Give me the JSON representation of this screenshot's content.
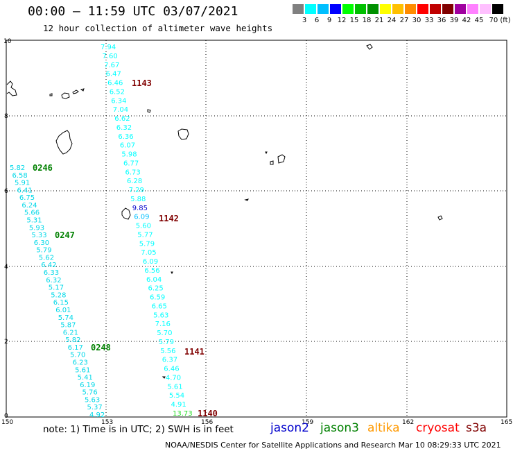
{
  "title": "00:00 – 11:59 UTC 03/07/2021",
  "subtitle": "12 hour collection of altimeter wave heights",
  "color_scale": {
    "labels": [
      "3",
      "6",
      "9",
      "12",
      "15",
      "18",
      "21",
      "24",
      "27",
      "30",
      "33",
      "36",
      "39",
      "42",
      "45",
      "70 (ft)"
    ],
    "colors": [
      "#808080",
      "#00ffff",
      "#00bfff",
      "#0000ff",
      "#00ff00",
      "#00c000",
      "#009000",
      "#ffff00",
      "#ffc000",
      "#ff8c00",
      "#ff0000",
      "#c00000",
      "#800000",
      "#a000a0",
      "#ff80ff",
      "#ffc0ff",
      "#000000"
    ]
  },
  "map": {
    "x_axis_labels": [
      "150",
      "153",
      "156",
      "159",
      "162",
      "165"
    ],
    "y_axis_labels": [
      "10",
      "8",
      "6",
      "4",
      "2",
      "0"
    ],
    "pass_labels": [
      {
        "text": "1143",
        "satellite": "cryosat",
        "color": "#800000"
      },
      {
        "text": "0246",
        "satellite": "jason3",
        "color": "#008000"
      },
      {
        "text": "0247",
        "satellite": "jason3",
        "color": "#008000"
      },
      {
        "text": "1142",
        "satellite": "cryosat",
        "color": "#800000"
      },
      {
        "text": "0248",
        "satellite": "jason3",
        "color": "#008000"
      },
      {
        "text": "1141",
        "satellite": "cryosat",
        "color": "#800000"
      },
      {
        "text": "1140",
        "satellite": "cryosat",
        "color": "#800000"
      }
    ],
    "tracks": [
      {
        "name": "cryosat-1143-1140",
        "values": [
          "7.94",
          "7.60",
          "7.67",
          "6.47",
          "6.46",
          "6.52",
          "6.34",
          "7.04",
          "6.62",
          "6.32",
          "6.36",
          "6.07",
          "5.98",
          "6.77",
          "6.73",
          "6.28",
          "7.29",
          "5.88",
          "9.85",
          "6.09",
          "5.60",
          "5.77",
          "5.79",
          "7.05",
          "6.09",
          "6.56",
          "6.04",
          "6.25",
          "6.59",
          "6.65",
          "5.63",
          "7.16",
          "5.70",
          "5.79",
          "5.56",
          "6.37",
          "6.46",
          "4.70",
          "5.61",
          "5.54",
          "4.91",
          "13.73"
        ],
        "colors": [
          "#00ffff",
          "#00ffff",
          "#00ffff",
          "#00ffff",
          "#00ffff",
          "#00ffff",
          "#00ffff",
          "#00ffff",
          "#00ffff",
          "#00ffff",
          "#00ffff",
          "#00ffff",
          "#00ffff",
          "#00ffff",
          "#00ffff",
          "#00ffff",
          "#00ffff",
          "#00ffff",
          "#0000cc",
          "#00bfff",
          "#00ffff",
          "#00ffff",
          "#00ffff",
          "#00ffff",
          "#00ffff",
          "#00ffff",
          "#00ffff",
          "#00ffff",
          "#00ffff",
          "#00ffff",
          "#00ffff",
          "#00ffff",
          "#00ffff",
          "#00ffff",
          "#00ffff",
          "#00ffff",
          "#00ffff",
          "#00ffff",
          "#00ffff",
          "#00ffff",
          "#00ffff",
          "#22dd22"
        ]
      },
      {
        "name": "jason3-0246-0248",
        "values": [
          "5.82",
          "6.58",
          "5.91",
          "6.41",
          "6.75",
          "6.24",
          "5.66",
          "5.31",
          "5.93",
          "5.33",
          "6.30",
          "5.79",
          "5.62",
          "6.42",
          "6.33",
          "6.32",
          "5.17",
          "5.28",
          "6.15",
          "6.01",
          "5.74",
          "5.87",
          "6.21",
          "5.82",
          "6.17",
          "5.70",
          "6.23",
          "5.61",
          "5.41",
          "6.19",
          "5.76",
          "5.63",
          "5.37",
          "4.92"
        ],
        "colors": []
      }
    ]
  },
  "note": "note:  1) Time is in UTC;  2) SWH is in feet",
  "legend": [
    {
      "name": "jason2",
      "color": "#0000cc"
    },
    {
      "name": "jason3",
      "color": "#008000"
    },
    {
      "name": "altika",
      "color": "#ff9900"
    },
    {
      "name": "cryosat",
      "color": "#ff0000"
    },
    {
      "name": "s3a",
      "color": "#800000"
    }
  ],
  "footer": "NOAA/NESDIS Center for Satellite Applications and Research    Mar 10 08:29:33 UTC 2021"
}
